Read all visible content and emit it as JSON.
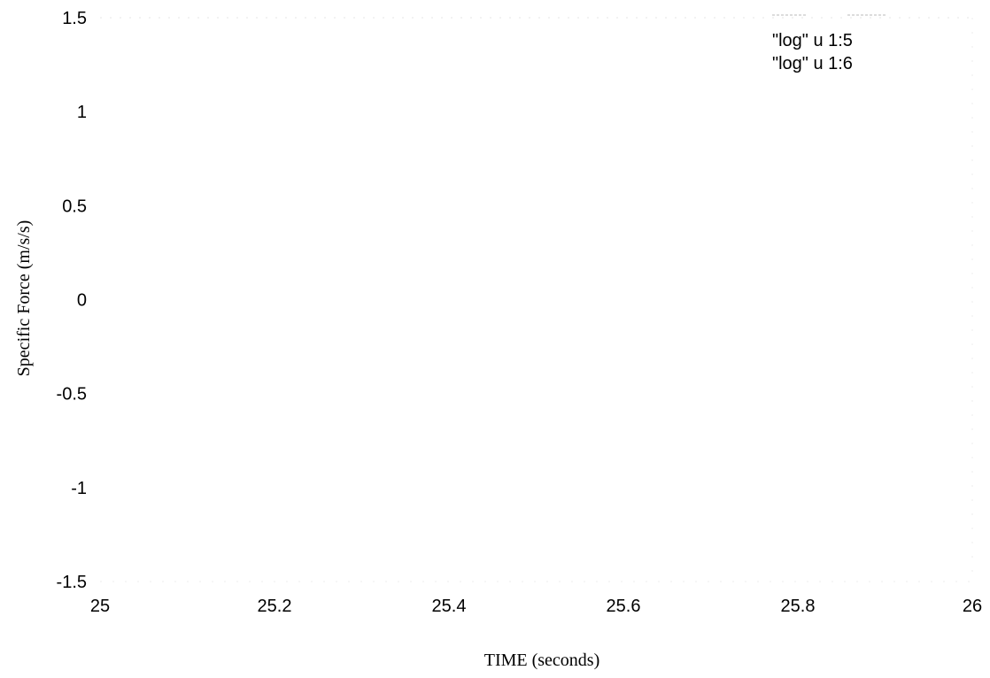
{
  "chart_data": {
    "type": "line",
    "title": "",
    "xlabel": "TIME (seconds)",
    "ylabel": "Specific Force (m/s/s)",
    "xlim": [
      25,
      26
    ],
    "ylim": [
      -1.5,
      1.5
    ],
    "x_ticks": [
      "25",
      "25.2",
      "25.4",
      "25.6",
      "25.8",
      "26"
    ],
    "y_ticks": [
      "1.5",
      "1",
      "0.5",
      "0",
      "-0.5",
      "-1",
      "-1.5"
    ],
    "legend_position": "top-right",
    "grid": false,
    "series": [
      {
        "name": "\"log\" u 1:5",
        "x": [],
        "y": []
      },
      {
        "name": "\"log\" u 1:6",
        "x": [],
        "y": []
      }
    ]
  }
}
